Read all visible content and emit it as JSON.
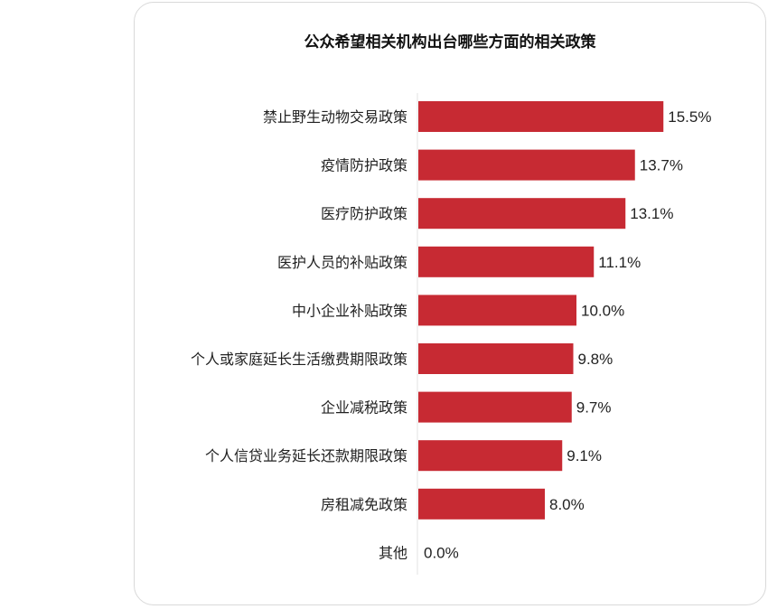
{
  "chart_data": {
    "type": "bar",
    "orientation": "horizontal",
    "title": "公众希望相关机构出台哪些方面的相关政策",
    "categories": [
      "禁止野生动物交易政策",
      "疫情防护政策",
      "医疗防护政策",
      "医护人员的补贴政策",
      "中小企业补贴政策",
      "个人或家庭延长生活缴费期限政策",
      "企业减税政策",
      "个人信贷业务延长还款期限政策",
      "房租减免政策",
      "其他"
    ],
    "values": [
      15.5,
      13.7,
      13.1,
      11.1,
      10.0,
      9.8,
      9.7,
      9.1,
      8.0,
      0.0
    ],
    "value_labels": [
      "15.5%",
      "13.7%",
      "13.1%",
      "11.1%",
      "10.0%",
      "9.8%",
      "9.7%",
      "9.1%",
      "8.0%",
      "0.0%"
    ],
    "bar_color": "#c72a33",
    "grid": false,
    "legend": "none"
  }
}
